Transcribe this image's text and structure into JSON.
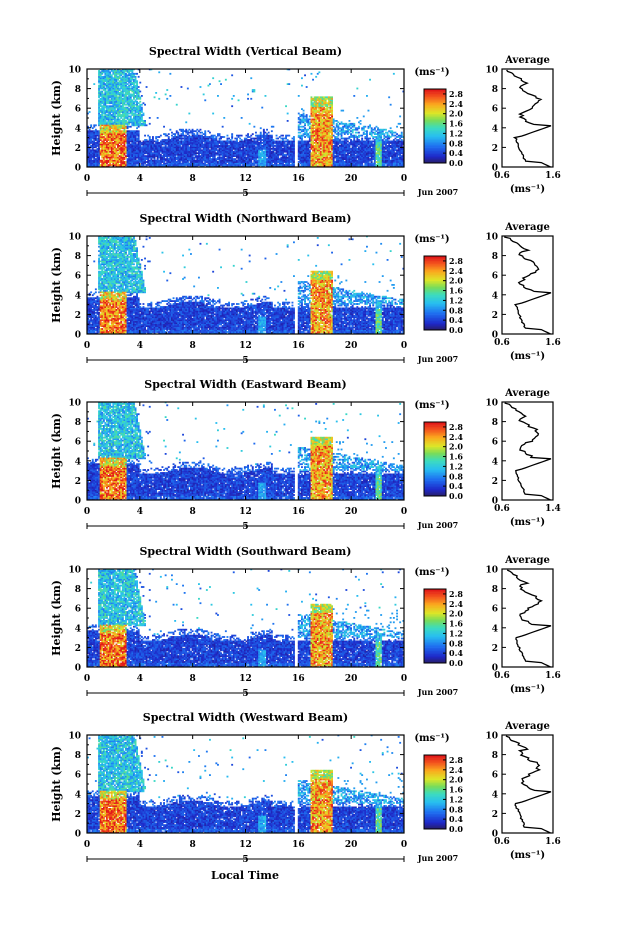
{
  "figure": {
    "x_axis_title": "Local Time",
    "date_label": "Jun 2007",
    "day_label": "5"
  },
  "chart_data": [
    {
      "type": "heatmap",
      "title": "Spectral Width (Vertical Beam)",
      "ylabel": "Height (km)",
      "xlabel": "Local Time",
      "xlim": [
        0,
        24
      ],
      "ylim": [
        0,
        10
      ],
      "x_ticks": [
        "0",
        "4",
        "8",
        "12",
        "16",
        "20",
        "0"
      ],
      "y_ticks": [
        "0",
        "2",
        "4",
        "6",
        "8",
        "10"
      ],
      "colorbar": {
        "unit": "(ms⁻¹)",
        "ticks": [
          "0.0",
          "0.4",
          "0.8",
          "1.2",
          "1.6",
          "2.0",
          "2.4",
          "2.8"
        ],
        "range": [
          0,
          3.0
        ]
      },
      "profile": {
        "title": "Average",
        "xlabel": "(ms⁻¹)",
        "x_ticks": [
          "0.6",
          "1.6"
        ],
        "xlim": [
          0.6,
          1.6
        ],
        "y_ticks": [
          "0",
          "2",
          "4",
          "6",
          "8",
          "10"
        ]
      }
    },
    {
      "type": "heatmap",
      "title": "Spectral Width (Northward Beam)",
      "ylabel": "Height (km)",
      "xlabel": "Local Time",
      "xlim": [
        0,
        24
      ],
      "ylim": [
        0,
        10
      ],
      "x_ticks": [
        "0",
        "4",
        "8",
        "12",
        "16",
        "20",
        "0"
      ],
      "y_ticks": [
        "0",
        "2",
        "4",
        "6",
        "8",
        "10"
      ],
      "colorbar": {
        "unit": "(ms⁻¹)",
        "ticks": [
          "0.0",
          "0.4",
          "0.8",
          "1.2",
          "1.6",
          "2.0",
          "2.4",
          "2.8"
        ],
        "range": [
          0,
          3.0
        ]
      },
      "profile": {
        "title": "Average",
        "xlabel": "(ms⁻¹)",
        "x_ticks": [
          "0.6",
          "1.6"
        ],
        "xlim": [
          0.6,
          1.6
        ],
        "y_ticks": [
          "0",
          "2",
          "4",
          "6",
          "8",
          "10"
        ]
      }
    },
    {
      "type": "heatmap",
      "title": "Spectral Width (Eastward Beam)",
      "ylabel": "Height (km)",
      "xlabel": "Local Time",
      "xlim": [
        0,
        24
      ],
      "ylim": [
        0,
        10
      ],
      "x_ticks": [
        "0",
        "4",
        "8",
        "12",
        "16",
        "20",
        "0"
      ],
      "y_ticks": [
        "0",
        "2",
        "4",
        "6",
        "8",
        "10"
      ],
      "colorbar": {
        "unit": "(ms⁻¹)",
        "ticks": [
          "0.0",
          "0.4",
          "0.8",
          "1.2",
          "1.6",
          "2.0",
          "2.4",
          "2.8"
        ],
        "range": [
          0,
          3.0
        ]
      },
      "profile": {
        "title": "Average",
        "xlabel": "(ms⁻¹)",
        "x_ticks": [
          "0.6",
          "1.4"
        ],
        "xlim": [
          0.6,
          1.4
        ],
        "y_ticks": [
          "0",
          "2",
          "4",
          "6",
          "8",
          "10"
        ]
      }
    },
    {
      "type": "heatmap",
      "title": "Spectral Width (Southward Beam)",
      "ylabel": "Height (km)",
      "xlabel": "Local Time",
      "xlim": [
        0,
        24
      ],
      "ylim": [
        0,
        10
      ],
      "x_ticks": [
        "0",
        "4",
        "8",
        "12",
        "16",
        "20",
        "0"
      ],
      "y_ticks": [
        "0",
        "2",
        "4",
        "6",
        "8",
        "10"
      ],
      "colorbar": {
        "unit": "(ms⁻¹)",
        "ticks": [
          "0.0",
          "0.4",
          "0.8",
          "1.2",
          "1.6",
          "2.0",
          "2.4",
          "2.8"
        ],
        "range": [
          0,
          3.0
        ]
      },
      "profile": {
        "title": "Average",
        "xlabel": "(ms⁻¹)",
        "x_ticks": [
          "0.6",
          "1.6"
        ],
        "xlim": [
          0.6,
          1.6
        ],
        "y_ticks": [
          "0",
          "2",
          "4",
          "6",
          "8",
          "10"
        ]
      }
    },
    {
      "type": "heatmap",
      "title": "Spectral Width (Westward Beam)",
      "ylabel": "Height (km)",
      "xlabel": "Local Time",
      "xlim": [
        0,
        24
      ],
      "ylim": [
        0,
        10
      ],
      "x_ticks": [
        "0",
        "4",
        "8",
        "12",
        "16",
        "20",
        "0"
      ],
      "y_ticks": [
        "0",
        "2",
        "4",
        "6",
        "8",
        "10"
      ],
      "colorbar": {
        "unit": "(ms⁻¹)",
        "ticks": [
          "0.0",
          "0.4",
          "0.8",
          "1.2",
          "1.6",
          "2.0",
          "2.4",
          "2.8"
        ],
        "range": [
          0,
          3.0
        ]
      },
      "profile": {
        "title": "Average",
        "xlabel": "(ms⁻¹)",
        "x_ticks": [
          "0.6",
          "1.6"
        ],
        "xlim": [
          0.6,
          1.6
        ],
        "y_ticks": [
          "0",
          "2",
          "4",
          "6",
          "8",
          "10"
        ]
      }
    }
  ]
}
